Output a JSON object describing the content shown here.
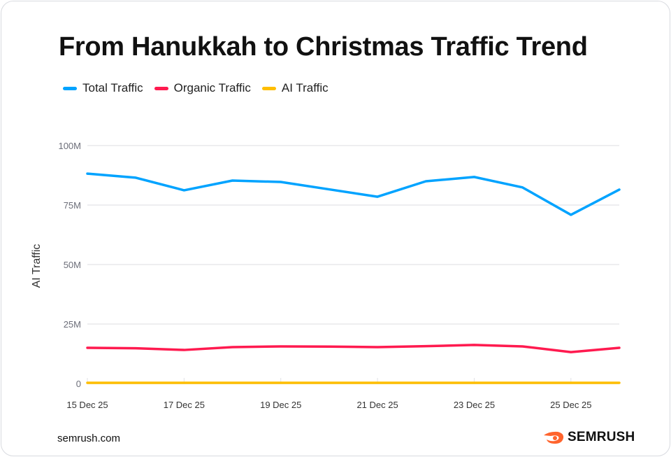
{
  "chart_data": {
    "type": "line",
    "title": "From Hanukkah to Christmas Traffic Trend",
    "xlabel": "",
    "ylabel": "AI Traffic",
    "x": [
      "15 Dec 25",
      "16 Dec 25",
      "17 Dec 25",
      "18 Dec 25",
      "19 Dec 25",
      "20 Dec 25",
      "21 Dec 25",
      "22 Dec 25",
      "23 Dec 25",
      "24 Dec 25",
      "25 Dec 25",
      "26 Dec 25"
    ],
    "x_tick_labels": [
      "15 Dec 25",
      "17 Dec 25",
      "19 Dec 25",
      "21 Dec 25",
      "23 Dec 25",
      "25 Dec 25"
    ],
    "y_tick_labels": [
      "0",
      "25M",
      "50M",
      "75M",
      "100M"
    ],
    "y_ticks": [
      0,
      25,
      50,
      75,
      100
    ],
    "ylim": [
      0,
      100
    ],
    "y_unit": "M",
    "grid": true,
    "legend_placement": "top-left",
    "series": [
      {
        "name": "Total Traffic",
        "color": "#00a3ff",
        "values": [
          88.2,
          86.5,
          81.2,
          85.3,
          84.7,
          81.6,
          78.5,
          85.0,
          86.8,
          82.4,
          70.9,
          81.5
        ]
      },
      {
        "name": "Organic Traffic",
        "color": "#ff1a4f",
        "values": [
          15.0,
          14.8,
          14.1,
          15.3,
          15.6,
          15.5,
          15.3,
          15.7,
          16.2,
          15.6,
          13.2,
          15.0
        ]
      },
      {
        "name": "AI Traffic",
        "color": "#ffbe00",
        "values": [
          0.3,
          0.3,
          0.3,
          0.3,
          0.3,
          0.3,
          0.3,
          0.3,
          0.3,
          0.3,
          0.3,
          0.3
        ]
      }
    ]
  },
  "footer": {
    "source": "semrush.com",
    "logo_text": "SEMRUSH"
  }
}
